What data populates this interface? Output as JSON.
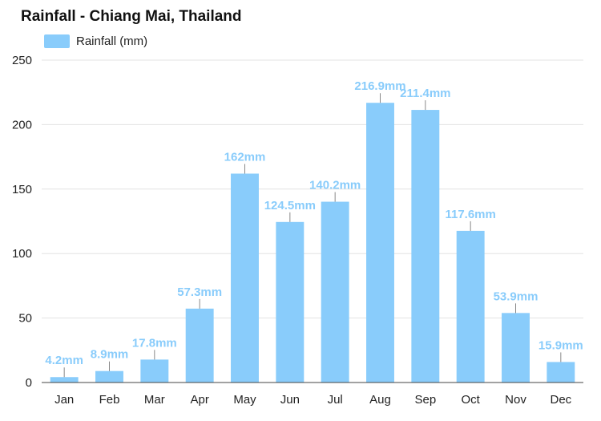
{
  "chart_data": {
    "type": "bar",
    "title": "Rainfall - Chiang Mai, Thailand",
    "legend": {
      "position": "top-left"
    },
    "categories": [
      "Jan",
      "Feb",
      "Mar",
      "Apr",
      "May",
      "Jun",
      "Jul",
      "Aug",
      "Sep",
      "Oct",
      "Nov",
      "Dec"
    ],
    "series": [
      {
        "name": "Rainfall (mm)",
        "color": "#89ccfb",
        "values": [
          4.2,
          8.9,
          17.8,
          57.3,
          162,
          124.5,
          140.2,
          216.9,
          211.4,
          117.6,
          53.9,
          15.9
        ],
        "data_labels": [
          "4.2mm",
          "8.9mm",
          "17.8mm",
          "57.3mm",
          "162mm",
          "124.5mm",
          "140.2mm",
          "216.9mm",
          "211.4mm",
          "117.6mm",
          "53.9mm",
          "15.9mm"
        ]
      }
    ],
    "yticks": [
      "0",
      "50",
      "100",
      "150",
      "200",
      "250"
    ],
    "ylim": [
      0,
      250
    ],
    "grid": true
  }
}
